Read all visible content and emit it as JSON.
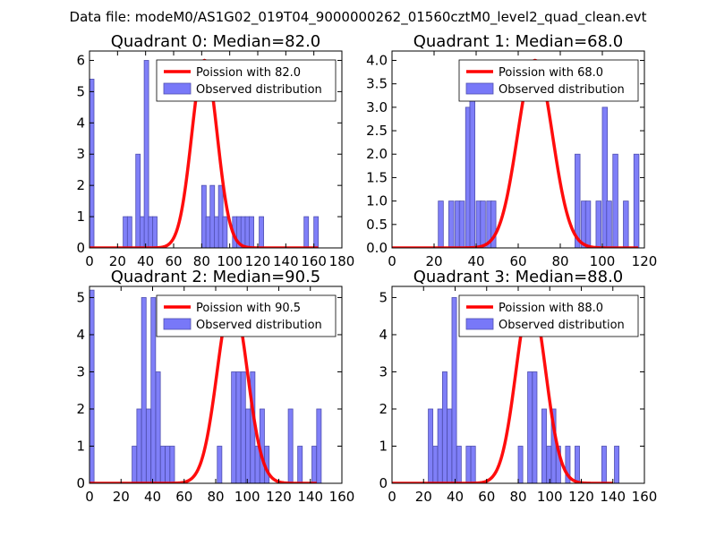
{
  "suptitle": "Data file: modeM0/AS1G02_019T04_9000000262_01560cztM0_level2_quad_clean.evt",
  "colors": {
    "bar_fill": "#7878f8",
    "bar_edge": "#5050b0",
    "poisson_line": "#ff0000"
  },
  "legend": {
    "observed_label": "Observed distribution"
  },
  "chart_data": [
    {
      "type": "bar",
      "title": "Quadrant 0: Median=82.0",
      "poisson_label": "Poission with 82.0",
      "median": 82.0,
      "xlim": [
        0,
        180
      ],
      "ylim": [
        0,
        6.3
      ],
      "xticks": [
        0,
        20,
        40,
        60,
        80,
        100,
        120,
        140,
        160,
        180
      ],
      "yticks": [
        0,
        1,
        2,
        3,
        4,
        5,
        6
      ],
      "ytick_decimals": 0,
      "bin_width": 3.2,
      "bins": [
        [
          0,
          5.4
        ],
        [
          24,
          1
        ],
        [
          27,
          1
        ],
        [
          33,
          3
        ],
        [
          36,
          1
        ],
        [
          39,
          6
        ],
        [
          42,
          1
        ],
        [
          45,
          1
        ],
        [
          80,
          2
        ],
        [
          83,
          1
        ],
        [
          86,
          2
        ],
        [
          89,
          1
        ],
        [
          92,
          2
        ],
        [
          95,
          1
        ],
        [
          102,
          1
        ],
        [
          105,
          1
        ],
        [
          108,
          1
        ],
        [
          111,
          1
        ],
        [
          114,
          1
        ],
        [
          121,
          1
        ],
        [
          153,
          1
        ],
        [
          160,
          1
        ]
      ],
      "poisson": {
        "peak": 6.0,
        "sd": 9.06,
        "xmin": 0,
        "xmax": 163
      }
    },
    {
      "type": "bar",
      "title": "Quadrant 1: Median=68.0",
      "poisson_label": "Poission with 68.0",
      "median": 68.0,
      "xlim": [
        0,
        120
      ],
      "ylim": [
        0,
        4.2
      ],
      "xticks": [
        0,
        20,
        40,
        60,
        80,
        100,
        120
      ],
      "yticks": [
        0,
        0.5,
        1.0,
        1.5,
        2.0,
        2.5,
        3.0,
        3.5,
        4.0
      ],
      "ytick_decimals": 1,
      "bin_width": 2.4,
      "bins": [
        [
          22,
          1
        ],
        [
          27,
          1
        ],
        [
          30,
          1
        ],
        [
          32,
          1
        ],
        [
          35,
          3
        ],
        [
          37,
          4
        ],
        [
          40,
          1
        ],
        [
          42,
          1
        ],
        [
          45,
          1
        ],
        [
          47,
          1
        ],
        [
          87,
          2
        ],
        [
          90,
          1
        ],
        [
          92,
          1
        ],
        [
          97,
          1
        ],
        [
          100,
          3
        ],
        [
          102,
          1
        ],
        [
          105,
          2
        ],
        [
          110,
          1
        ],
        [
          115,
          2
        ]
      ],
      "poisson": {
        "peak": 4.0,
        "sd": 8.25,
        "xmin": 0,
        "xmax": 117
      }
    },
    {
      "type": "bar",
      "title": "Quadrant 2: Median=90.5",
      "poisson_label": "Poission with 90.5",
      "median": 90.5,
      "xlim": [
        0,
        160
      ],
      "ylim": [
        0,
        5.3
      ],
      "xticks": [
        0,
        20,
        40,
        60,
        80,
        100,
        120,
        140,
        160
      ],
      "yticks": [
        0,
        1,
        2,
        3,
        4,
        5
      ],
      "ytick_decimals": 0,
      "bin_width": 2.9,
      "bins": [
        [
          0,
          5.2
        ],
        [
          27,
          1
        ],
        [
          30,
          2
        ],
        [
          33,
          5
        ],
        [
          36,
          2
        ],
        [
          39,
          5
        ],
        [
          42,
          3
        ],
        [
          45,
          1
        ],
        [
          48,
          1
        ],
        [
          51,
          1
        ],
        [
          81,
          1
        ],
        [
          90,
          3
        ],
        [
          93,
          3
        ],
        [
          96,
          3
        ],
        [
          99,
          2
        ],
        [
          102,
          3
        ],
        [
          105,
          1
        ],
        [
          108,
          2
        ],
        [
          111,
          1
        ],
        [
          126,
          2
        ],
        [
          132,
          1
        ],
        [
          141,
          1
        ],
        [
          144,
          2
        ]
      ],
      "poisson": {
        "peak": 5.0,
        "sd": 9.51,
        "xmin": 0,
        "xmax": 144
      }
    },
    {
      "type": "bar",
      "title": "Quadrant 3: Median=88.0",
      "poisson_label": "Poission with 88.0",
      "median": 88.0,
      "xlim": [
        0,
        160
      ],
      "ylim": [
        0,
        5.3
      ],
      "xticks": [
        0,
        20,
        40,
        60,
        80,
        100,
        120,
        140,
        160
      ],
      "yticks": [
        0,
        1,
        2,
        3,
        4,
        5
      ],
      "ytick_decimals": 0,
      "bin_width": 2.9,
      "bins": [
        [
          23,
          2
        ],
        [
          26,
          1
        ],
        [
          29,
          2
        ],
        [
          32,
          3
        ],
        [
          35,
          2
        ],
        [
          38,
          5
        ],
        [
          41,
          1
        ],
        [
          47,
          1
        ],
        [
          50,
          1
        ],
        [
          80,
          1
        ],
        [
          86,
          3
        ],
        [
          89,
          3
        ],
        [
          95,
          2
        ],
        [
          98,
          1
        ],
        [
          101,
          2
        ],
        [
          104,
          1
        ],
        [
          110,
          1
        ],
        [
          116,
          1
        ],
        [
          133,
          1
        ],
        [
          141,
          1
        ]
      ],
      "poisson": {
        "peak": 5.0,
        "sd": 9.38,
        "xmin": 0,
        "xmax": 140
      }
    }
  ]
}
